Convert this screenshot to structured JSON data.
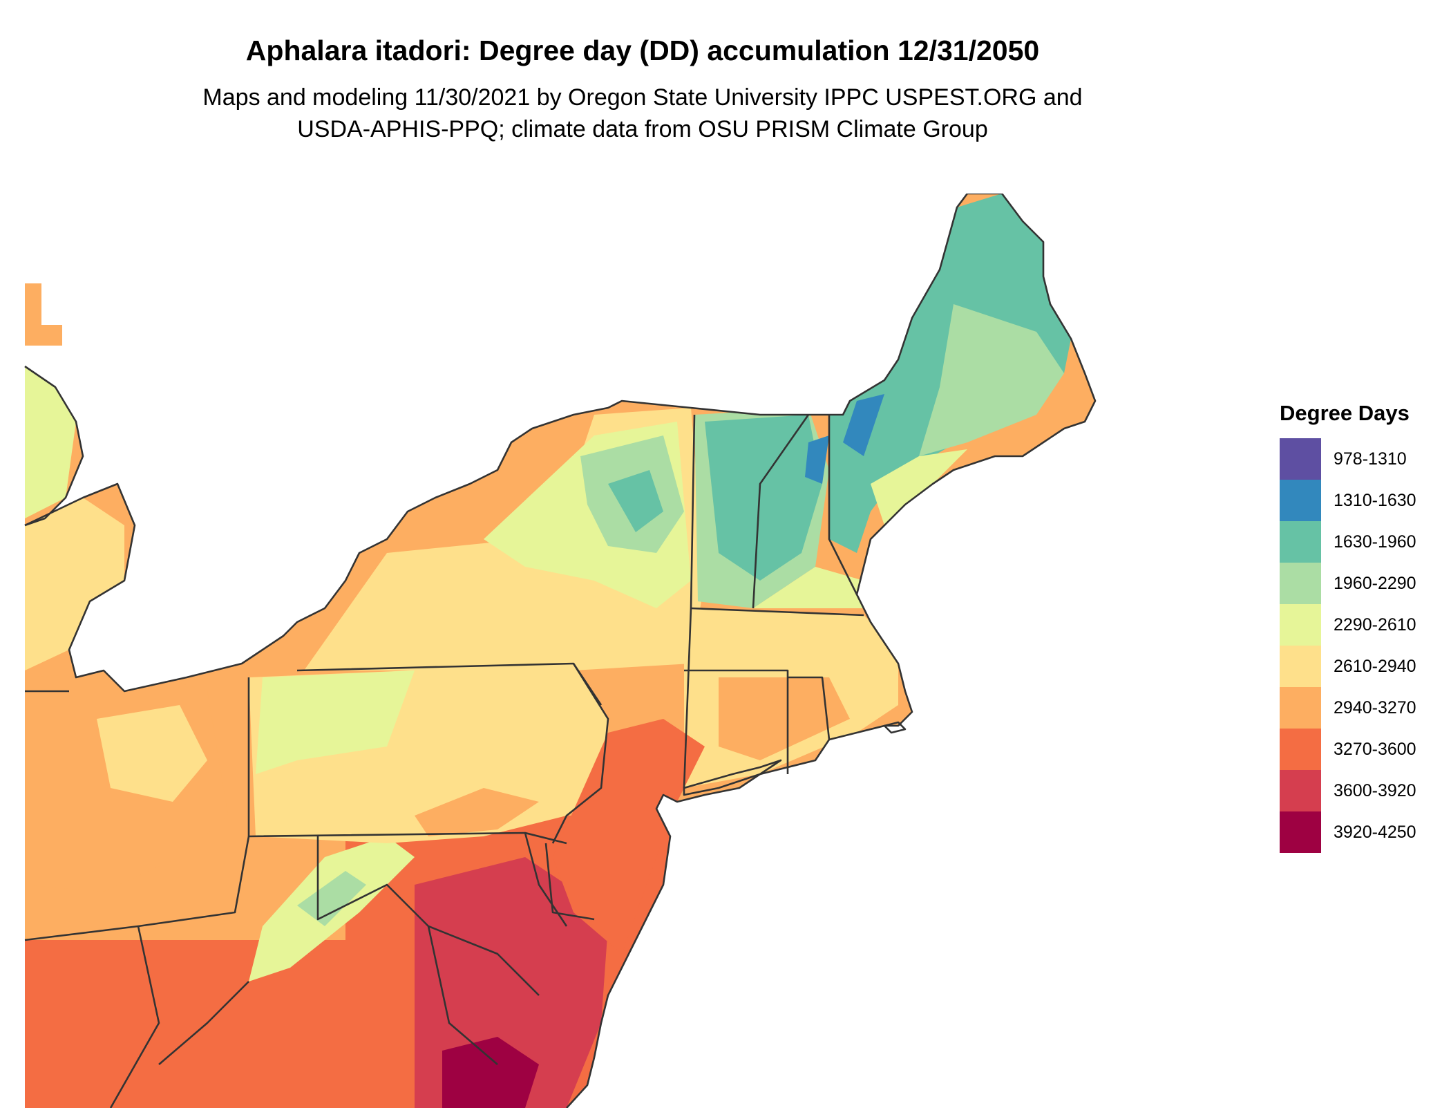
{
  "header": {
    "title": "Aphalara itadori: Degree day (DD) accumulation 12/31/2050",
    "subtitle_line1": "Maps and modeling 11/30/2021 by Oregon State University IPPC USPEST.ORG and",
    "subtitle_line2": "USDA-APHIS-PPQ; climate data from OSU PRISM Climate Group"
  },
  "legend": {
    "title": "Degree Days",
    "items": [
      {
        "label": "978-1310",
        "color": "#5e4fa2"
      },
      {
        "label": "1310-1630",
        "color": "#3288bd"
      },
      {
        "label": "1630-1960",
        "color": "#66c2a5"
      },
      {
        "label": "1960-2290",
        "color": "#abdda4"
      },
      {
        "label": "2290-2610",
        "color": "#e6f598"
      },
      {
        "label": "2610-2940",
        "color": "#fee08b"
      },
      {
        "label": "2940-3270",
        "color": "#fdae61"
      },
      {
        "label": "3270-3600",
        "color": "#f46d43"
      },
      {
        "label": "3600-3920",
        "color": "#d53e4f"
      },
      {
        "label": "3920-4250",
        "color": "#9e0142"
      }
    ]
  }
}
